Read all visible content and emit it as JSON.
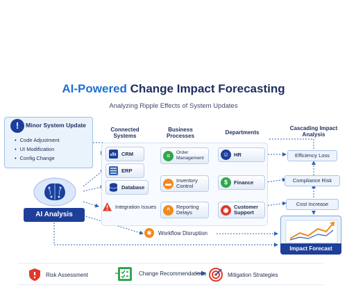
{
  "header": {
    "title_accent": "AI-Powered",
    "title_rest": "Change Impact Forecasting",
    "subtitle": "Analyzing Ripple Effects of System Updates"
  },
  "minor": {
    "title": "Minor System Update",
    "items": [
      "Code Adjustment",
      "UI Modification",
      "Config Change"
    ]
  },
  "columns": {
    "systems": "Connected Systems",
    "processes": "Business Processes",
    "departments": "Departments",
    "cascading": "Cascading Impact Analysis"
  },
  "systems": [
    "CRM",
    "ERP",
    "Database"
  ],
  "issues": "Integration Issues",
  "processes": [
    "Order Management",
    "Inventory Control",
    "Reporting Delays"
  ],
  "departments": [
    "HR",
    "Finance",
    "Customer Support"
  ],
  "cascading": [
    "Efficiency Loss",
    "Compliance Risk",
    "Cost Increase"
  ],
  "workflow": "Workflow Disruption",
  "ai_label": "AI Analysis",
  "forecast_label": "Impact Forecast",
  "bottom": [
    "Risk Assessment",
    "Change Recommendations",
    "Mitigation Strategies"
  ],
  "colors": {
    "navy": "#1d3f9a",
    "accent": "#1f6fd1",
    "green": "#2ea84a",
    "orange": "#f08a1c",
    "red": "#e0392b"
  }
}
